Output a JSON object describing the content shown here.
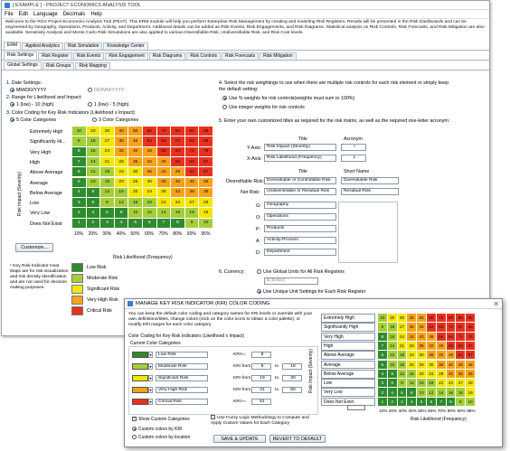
{
  "window": {
    "title": "[ EXAMPLE ] - PROJECT ECONOMICS ANALYSIS TOOL",
    "menu": [
      "File",
      "Edit",
      "Language",
      "Decimals",
      "Help"
    ],
    "intro": "Welcome to the ROV Project Economics Analysis Tool (PEAT). This ERM module will help you perform Enterprise Risk Management by creating and modeling Risk Registers. Results will be presented in the Risk Dashboards and can be segmented by Geography, Operations, Products, Activity, and Department. Additional details can be added as Risk Events, Risk Engagements, and Risk Diagrams. Statistical analysis on Risk Controls, Risk Forecasts, and Risk Mitigation are also available. Sensitivity Analysis and Monte Carlo Risk Simulations are also applied to various Diversifiable Risk, Undiversifiable Risk, and Risk Cost levels."
  },
  "tabs_top": [
    "ERM",
    "Applied Analytics",
    "Risk Simulation",
    "Knowledge Center"
  ],
  "tabs_second": [
    "Risk Settings",
    "Risk Register",
    "Risk Events",
    "Risk Engagement",
    "Risk Diagrams",
    "Risk Controls",
    "Risk Forecasts",
    "Risk Mitigation"
  ],
  "tabs_third": [
    "Global Settings",
    "Risk Groups",
    "Risk Mapping"
  ],
  "settings": {
    "s1_label": "1. Date Settings:",
    "date_opt1": "MM/DD/YYYY",
    "date_opt2": "DD/MM/YYYY",
    "s2_label": "2. Range for Likelihood and Impact:",
    "range_opt1": "1 (low) - 10 (high)",
    "range_opt2": "1 (low) - 5 (high)",
    "s3_label": "3. Color Coding for Key Risk Indicators (Likelihood x Impact):",
    "cat_opt1": "5 Color Categories",
    "cat_opt2": "3 Color Categories",
    "y_axis_label": "Risk Impact (Severity)",
    "x_axis_label": "Risk Likelihood (Frequency)",
    "customize_btn": "Customize...",
    "note": "* Key Risk Indicator Heat Maps are for risk visualization and risk density identification and are not used for decision making purposes.",
    "s4_label": "4. Select the risk weightings to use when there are multiple risk controls for each risk element or simply keep the default setting:",
    "weight_opt1": "Use % weights for risk controls(weights must sum to 100%)",
    "weight_opt2": "Use integer weights for risk controls",
    "s5_label": "5. Enter your own customized titles as required for the risk matrix, as well as the required one-letter acronym:",
    "col_title": "Title",
    "col_acronym": "Acronym",
    "col_short": "Short Name",
    "yaxis_row_label": "Y-Axis:",
    "yaxis_title": "Risk Impact (Severity)",
    "yaxis_acr": "I",
    "xaxis_row_label": "X-Axis:",
    "xaxis_title": "Risk Likelihood (Frequency)",
    "xaxis_acr": "L",
    "div_label": "Diversifiable Risk:",
    "div_title": "Diversifiable or Controllable Risk",
    "div_short": "Diversifiable Risk",
    "net_label": "Net Risk:",
    "net_title": "Undiversifiable or Residual Risk",
    "net_short": "Residual Risk",
    "seg_rows": [
      {
        "key": "G:",
        "value": "Geography"
      },
      {
        "key": "O:",
        "value": "Operations"
      },
      {
        "key": "P:",
        "value": "Products"
      },
      {
        "key": "A:",
        "value": "Activity-Process"
      },
      {
        "key": "D:",
        "value": "Department"
      }
    ],
    "s6_label": "6. Currency:",
    "cur_opt1": "Use Global Units for All Risk Registers",
    "cur_value": "$ (Dollar)",
    "cur_opt2": "Use Unique Unit Settings for Each Risk Register"
  },
  "heatmap": {
    "rows": [
      "Extremely High",
      "Significantly Hi...",
      "Very High",
      "High",
      "Above Average",
      "Average",
      "Below Average",
      "Low",
      "Very Low",
      "Does Not Exist"
    ],
    "x_ticks": [
      "10%",
      "20%",
      "30%",
      "40%",
      "50%",
      "60%",
      "70%",
      "80%",
      "90%",
      "95%"
    ],
    "values": [
      [
        10,
        20,
        30,
        40,
        50,
        60,
        70,
        80,
        90,
        95
      ],
      [
        9,
        18,
        27,
        36,
        45,
        54,
        63,
        72,
        81,
        86
      ],
      [
        8,
        16,
        24,
        32,
        40,
        48,
        56,
        64,
        72,
        76
      ],
      [
        7,
        14,
        21,
        28,
        35,
        42,
        49,
        56,
        63,
        67
      ],
      [
        6,
        12,
        18,
        24,
        30,
        36,
        42,
        48,
        54,
        57
      ],
      [
        5,
        10,
        15,
        20,
        25,
        30,
        35,
        40,
        45,
        48
      ],
      [
        4,
        8,
        12,
        16,
        20,
        24,
        28,
        32,
        36,
        38
      ],
      [
        3,
        6,
        9,
        12,
        15,
        18,
        21,
        24,
        27,
        29
      ],
      [
        2,
        4,
        6,
        8,
        10,
        12,
        14,
        16,
        18,
        19
      ],
      [
        1,
        2,
        3,
        4,
        5,
        6,
        7,
        8,
        9,
        10
      ]
    ],
    "legend": [
      "Low Risk",
      "Moderate Risk",
      "Significant Risk",
      "Very High Risk",
      "Critical Risk"
    ]
  },
  "colors": {
    "low": "#2e8b2e",
    "moderate": "#a4cf3a",
    "significant": "#f2e600",
    "veryhigh": "#f7a21b",
    "critical": "#e8321f"
  },
  "dialog": {
    "title": "MANAGE KEY RISK INDICATOR (KRI) COLOR CODING",
    "intro": "You can keep the default color coding and category names for KRI levels or override with your own definitions/titles, change colors (click on the color icons to obtain a color palette), or modify KRI ranges for each color category.",
    "section_label": "Color Coding for Key Risk Indicators (Likelihood x Impact)",
    "current_label": "Current Color Categories",
    "categories": [
      {
        "name": "Low Risk",
        "op": "KRI<=",
        "v1": "8",
        "v2": ""
      },
      {
        "name": "Moderate Risk",
        "op": "KRI from",
        "v1": "9",
        "v2": "18"
      },
      {
        "name": "Significant Risk",
        "op": "KRI from",
        "v1": "19",
        "v2": "30"
      },
      {
        "name": "Very High Risk",
        "op": "KRI from",
        "v1": "31",
        "v2": "50"
      },
      {
        "name": "Critical Risk",
        "op": "KRI>=",
        "v1": "51",
        "v2": ""
      }
    ],
    "to_label": "to",
    "show_custom": "Show Custom Categories",
    "fuzzy": "Use Fuzzy Logic Methodology to Compute and Apply Custom Values for Each Category",
    "color_opt1": "Custom colors by KRI",
    "color_opt2": "Custom colors by location",
    "save_btn": "SAVE & UPDATE",
    "revert_btn": "REVERT TO DEFAULT",
    "y_axis_label": "Risk Impact (Severity)",
    "x_axis_label": "Risk Likelihood (Frequency)",
    "rows": [
      "Extremely High",
      "Significantly High",
      "Very High",
      "High",
      "Above Average",
      "Average",
      "Below Average",
      "Low",
      "Very Low",
      "Does Not Exist"
    ]
  }
}
